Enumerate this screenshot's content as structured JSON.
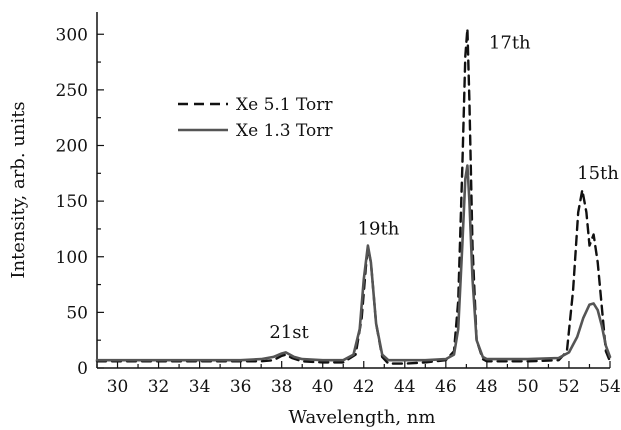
{
  "chart_data": {
    "type": "line",
    "xlabel": "Wavelength, nm",
    "ylabel": "Intensity, arb. units",
    "xlim": [
      29,
      54
    ],
    "ylim": [
      0,
      320
    ],
    "xticks": [
      30,
      32,
      34,
      36,
      38,
      40,
      42,
      44,
      46,
      48,
      50,
      52,
      54
    ],
    "yticks": [
      0,
      50,
      100,
      150,
      200,
      250,
      300
    ],
    "legend_position": "upper-left",
    "series": [
      {
        "name": "Xe 5.1 Torr",
        "style": "dashed",
        "color": "#111111",
        "points": [
          [
            29,
            6
          ],
          [
            30,
            6
          ],
          [
            32,
            6
          ],
          [
            34,
            6
          ],
          [
            36,
            6
          ],
          [
            37,
            6
          ],
          [
            37.6,
            7
          ],
          [
            38.0,
            11
          ],
          [
            38.2,
            12
          ],
          [
            38.5,
            9
          ],
          [
            39,
            6
          ],
          [
            40,
            5
          ],
          [
            41,
            5
          ],
          [
            41.6,
            12
          ],
          [
            41.9,
            45
          ],
          [
            42.1,
            90
          ],
          [
            42.2,
            108
          ],
          [
            42.35,
            95
          ],
          [
            42.6,
            40
          ],
          [
            42.9,
            10
          ],
          [
            43.2,
            4
          ],
          [
            44,
            4
          ],
          [
            45,
            5
          ],
          [
            46,
            7
          ],
          [
            46.4,
            15
          ],
          [
            46.6,
            60
          ],
          [
            46.8,
            180
          ],
          [
            46.95,
            280
          ],
          [
            47.05,
            305
          ],
          [
            47.15,
            240
          ],
          [
            47.3,
            110
          ],
          [
            47.5,
            25
          ],
          [
            47.8,
            8
          ],
          [
            48,
            6
          ],
          [
            50,
            6
          ],
          [
            51.5,
            7
          ],
          [
            51.9,
            15
          ],
          [
            52.2,
            70
          ],
          [
            52.45,
            140
          ],
          [
            52.65,
            160
          ],
          [
            52.85,
            140
          ],
          [
            53.0,
            110
          ],
          [
            53.2,
            120
          ],
          [
            53.4,
            95
          ],
          [
            53.6,
            55
          ],
          [
            53.8,
            15
          ],
          [
            54,
            6
          ]
        ]
      },
      {
        "name": "Xe 1.3 Torr",
        "style": "solid",
        "color": "#555555",
        "points": [
          [
            29,
            7
          ],
          [
            30,
            7
          ],
          [
            32,
            7
          ],
          [
            34,
            7
          ],
          [
            36,
            7
          ],
          [
            37,
            8
          ],
          [
            37.6,
            10
          ],
          [
            38.0,
            13
          ],
          [
            38.2,
            14
          ],
          [
            38.6,
            10
          ],
          [
            39,
            8
          ],
          [
            40,
            7
          ],
          [
            41,
            7
          ],
          [
            41.5,
            12
          ],
          [
            41.8,
            35
          ],
          [
            42.0,
            80
          ],
          [
            42.2,
            110
          ],
          [
            42.35,
            95
          ],
          [
            42.6,
            40
          ],
          [
            42.9,
            12
          ],
          [
            43.2,
            7
          ],
          [
            44,
            7
          ],
          [
            45,
            7
          ],
          [
            46,
            8
          ],
          [
            46.4,
            12
          ],
          [
            46.6,
            35
          ],
          [
            46.8,
            110
          ],
          [
            46.95,
            170
          ],
          [
            47.05,
            182
          ],
          [
            47.15,
            150
          ],
          [
            47.3,
            80
          ],
          [
            47.5,
            25
          ],
          [
            47.8,
            10
          ],
          [
            48,
            8
          ],
          [
            50,
            8
          ],
          [
            51.5,
            9
          ],
          [
            52,
            14
          ],
          [
            52.4,
            28
          ],
          [
            52.7,
            45
          ],
          [
            53.0,
            57
          ],
          [
            53.2,
            58
          ],
          [
            53.4,
            52
          ],
          [
            53.6,
            38
          ],
          [
            53.8,
            20
          ],
          [
            54,
            10
          ]
        ]
      }
    ],
    "annotations": [
      {
        "text": "21st",
        "x": 37.4,
        "y": 27
      },
      {
        "text": "19th",
        "x": 41.7,
        "y": 120
      },
      {
        "text": "17th",
        "x": 48.1,
        "y": 287
      },
      {
        "text": "15th",
        "x": 52.4,
        "y": 170
      }
    ]
  }
}
